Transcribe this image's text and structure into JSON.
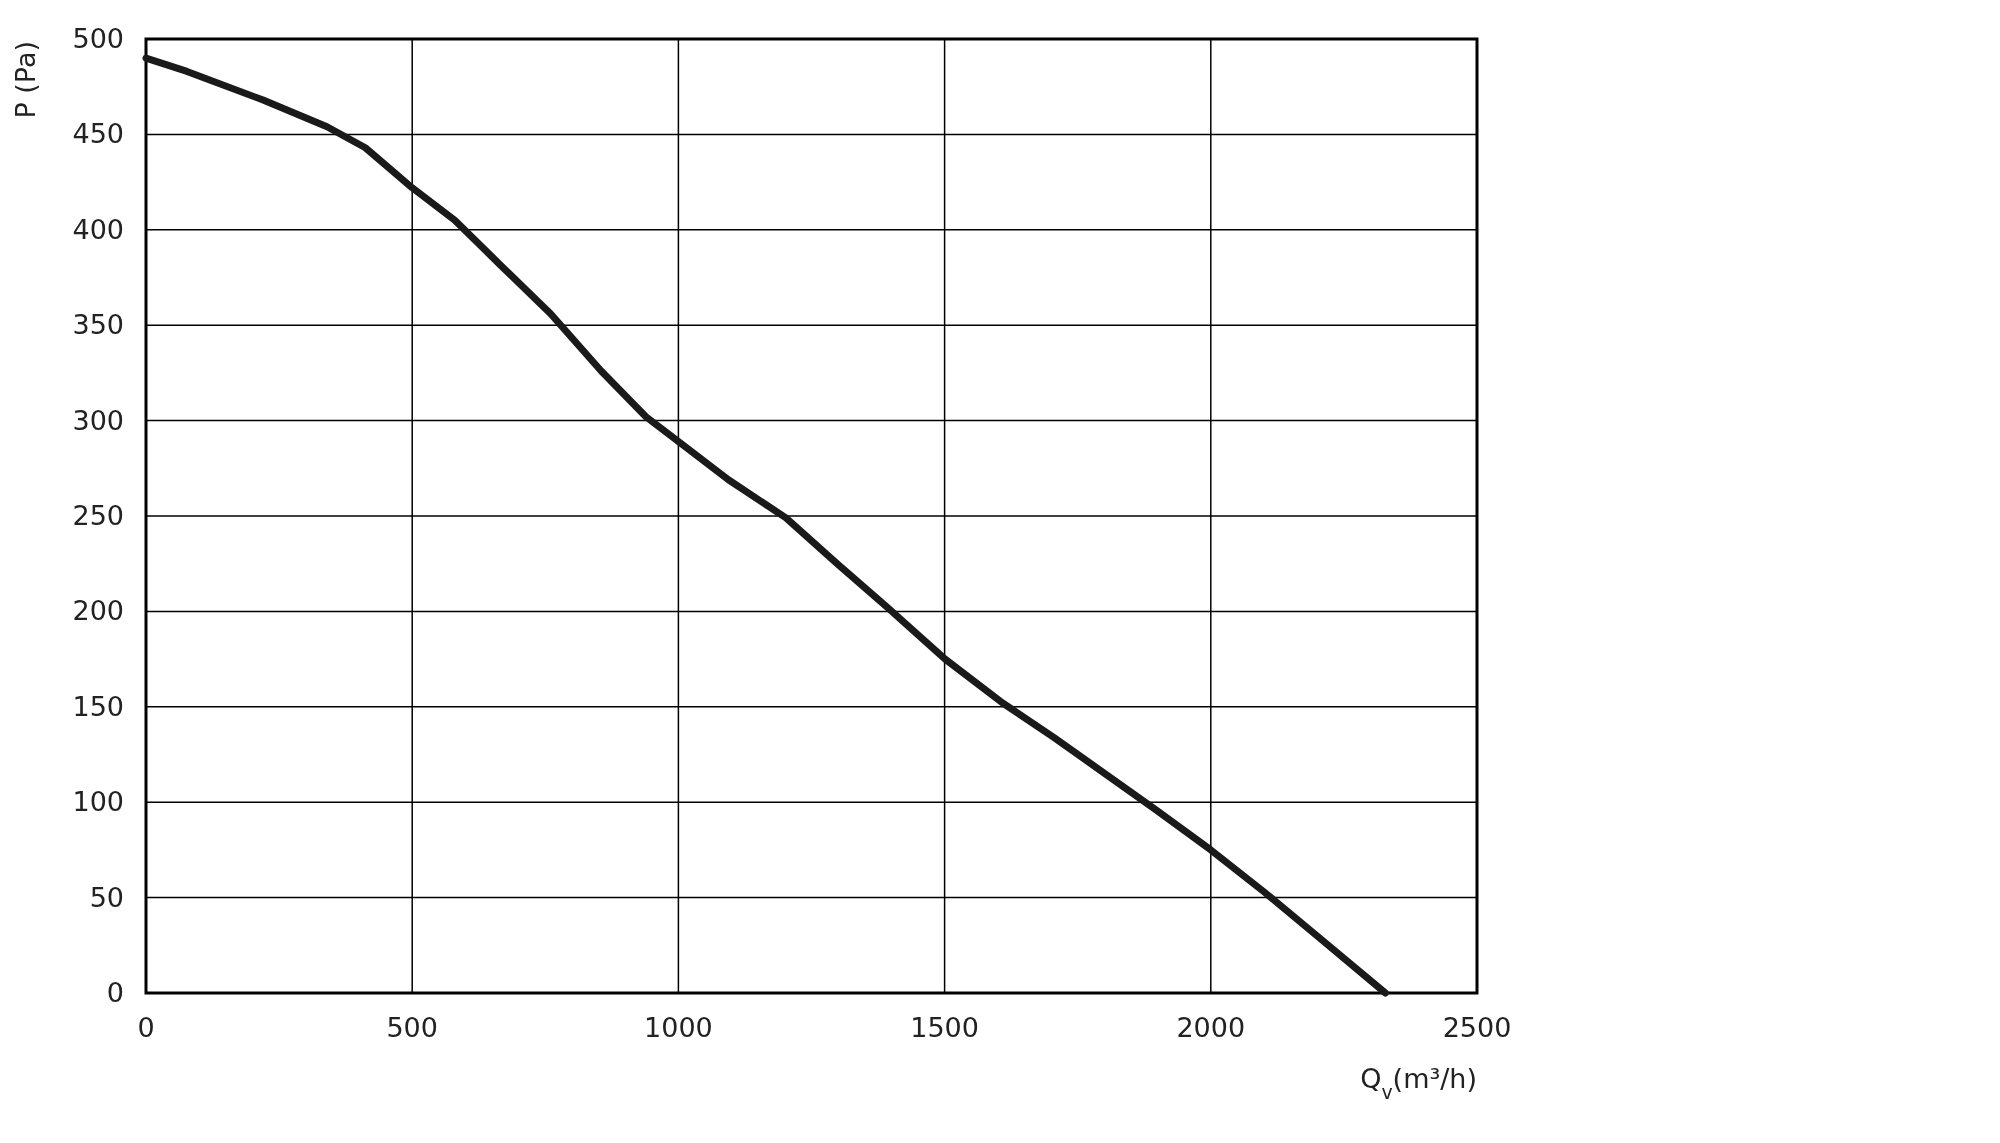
{
  "chart_data": {
    "type": "line",
    "xlabel": "Q$_{v}$(m³/h)",
    "ylabel": "P (Pa)",
    "xlim": [
      0,
      2500
    ],
    "ylim": [
      0,
      500
    ],
    "xticks": [
      0,
      500,
      1000,
      1500,
      2000,
      2500
    ],
    "yticks": [
      0,
      50,
      100,
      150,
      200,
      250,
      300,
      350,
      400,
      450,
      500
    ],
    "grid": true,
    "marker": "none",
    "line_style": "solid",
    "series": [
      {
        "color": "#1a1a1a",
        "x": [
          0,
          77,
          220,
          340,
          412,
          500,
          580,
          664,
          760,
          855,
          939,
          1000,
          1094,
          1202,
          1298,
          1393,
          1501,
          1609,
          1705,
          1801,
          1897,
          2000,
          2100,
          2208,
          2328
        ],
        "values": [
          490,
          483,
          468,
          454,
          443,
          422,
          405,
          382,
          356,
          326,
          302,
          289,
          269,
          249,
          225,
          202,
          175,
          152,
          134,
          115,
          96,
          75,
          53,
          28,
          0
        ]
      }
    ]
  }
}
